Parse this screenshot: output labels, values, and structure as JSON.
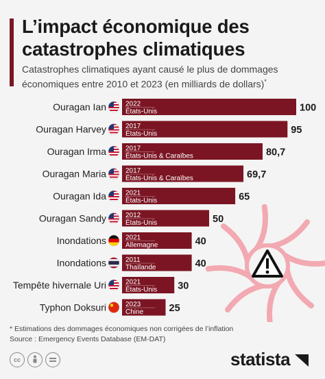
{
  "header": {
    "title": "L’impact économique des catastrophes climatiques",
    "subtitle": "Catastrophes climatiques ayant causé le plus de dommages économiques entre 2010 et 2023 (en milliards de dollars)",
    "subtitle_marker": "*"
  },
  "chart_data": {
    "type": "bar",
    "orientation": "horizontal",
    "categories": [
      "Ouragan Ian",
      "Ouragan Harvey",
      "Ouragan Irma",
      "Ouragan Maria",
      "Ouragan Ida",
      "Ouragan Sandy",
      "Inondations",
      "Inondations",
      "Tempête hivernale Uri",
      "Typhon Doksuri"
    ],
    "values": [
      100,
      95,
      80.7,
      69.7,
      65,
      50,
      40,
      40,
      30,
      25
    ],
    "value_labels": [
      "100",
      "95",
      "80,7",
      "69,7",
      "65",
      "50",
      "40",
      "40",
      "30",
      "25"
    ],
    "years": [
      "2022",
      "2017",
      "2017",
      "2017",
      "2021",
      "2012",
      "2021",
      "2011",
      "2021",
      "2023"
    ],
    "countries": [
      "États-Unis",
      "États-Unis",
      "États-Unis & Caraïbes",
      "États-Unis & Caraïbes",
      "États-Unis",
      "États-Unis",
      "Allemagne",
      "Thaïlande",
      "États-Unis",
      "Chine"
    ],
    "flags": [
      "us-flag-icon",
      "us-flag-icon",
      "us-flag-icon",
      "us-flag-icon",
      "us-flag-icon",
      "us-flag-icon",
      "germany-flag-icon",
      "thailand-flag-icon",
      "us-flag-icon",
      "china-flag-icon"
    ],
    "xlim": [
      0,
      100
    ],
    "bar_color": "#7b1523",
    "grid": false
  },
  "footer": {
    "note": "* Estimations des dommages économiques non corrigées de l’inflation",
    "source": "Source : Emergency Events Database (EM-DAT)"
  },
  "brand": {
    "name": "statista"
  },
  "colors": {
    "accent": "#7b1523",
    "background": "#f4f4f4",
    "hurricane": "#f2a9b1"
  },
  "icons": [
    "creative-commons-icon",
    "attribution-icon",
    "no-derivatives-icon",
    "hurricane-icon",
    "warning-icon",
    "statista-logo-icon"
  ]
}
